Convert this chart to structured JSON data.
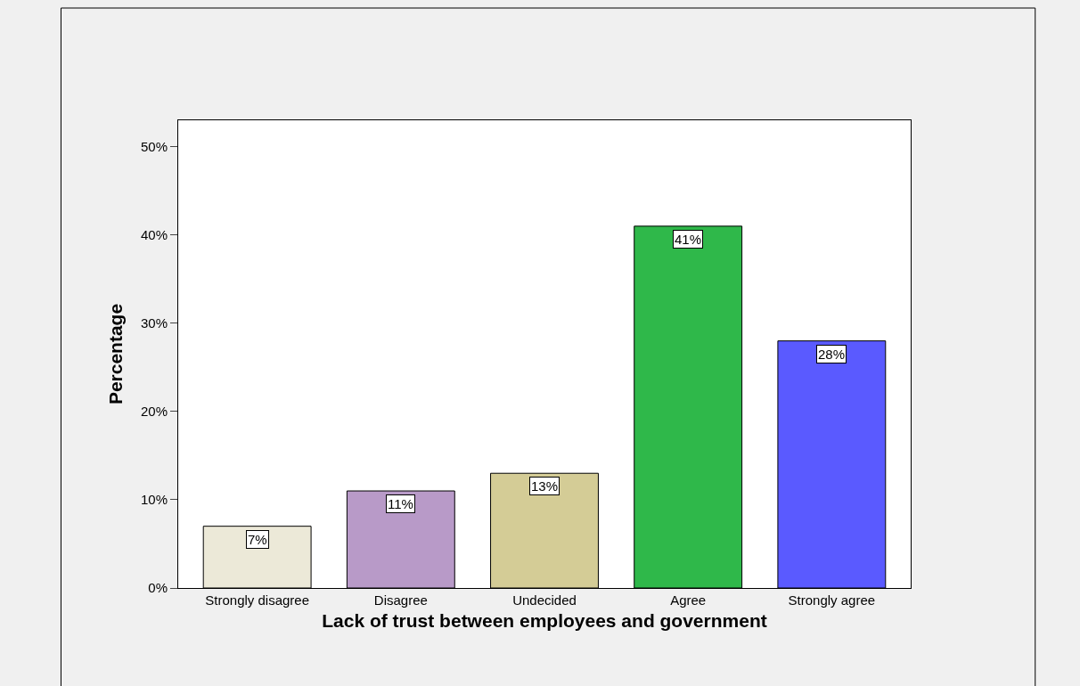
{
  "chart_data": {
    "type": "bar",
    "xlabel": "Lack of trust between employees and government",
    "ylabel": "Percentage",
    "categories": [
      "Strongly disagree",
      "Disagree",
      "Undecided",
      "Agree",
      "Strongly agree"
    ],
    "values": [
      7,
      11,
      13,
      41,
      28
    ],
    "colors": [
      "#ece9d8",
      "#b89ac8",
      "#d4cc96",
      "#2fb84a",
      "#5a5aff"
    ],
    "value_labels": [
      "7%",
      "11%",
      "13%",
      "41%",
      "28%"
    ],
    "ylim": [
      0,
      53
    ],
    "yticks": [
      {
        "value": 0,
        "label": "0%"
      },
      {
        "value": 10,
        "label": "10%"
      },
      {
        "value": 20,
        "label": "20%"
      },
      {
        "value": 30,
        "label": "30%"
      },
      {
        "value": 40,
        "label": "40%"
      },
      {
        "value": 50,
        "label": "50%"
      }
    ],
    "grid": false,
    "legend": false
  }
}
